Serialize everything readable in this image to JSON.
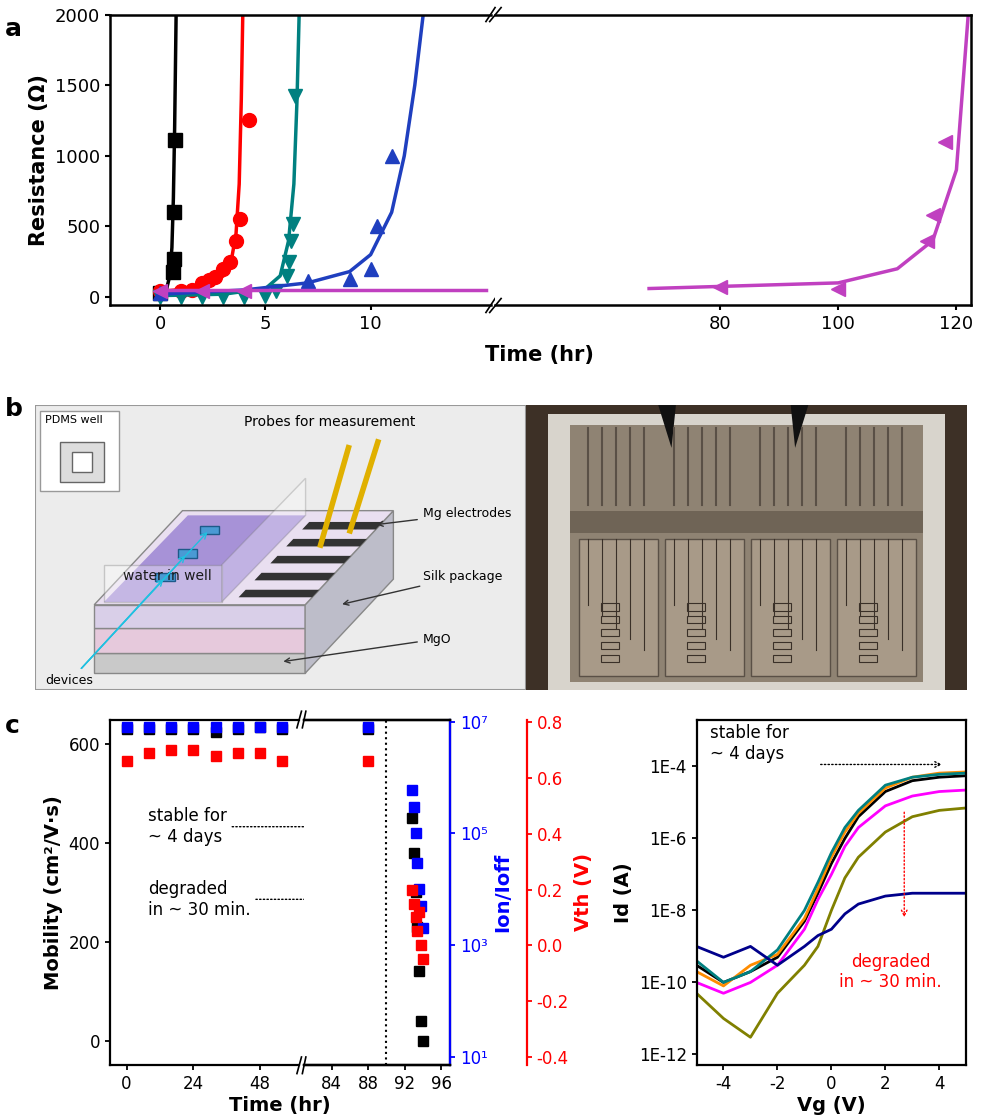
{
  "chart_data": [
    {
      "panel": "a",
      "type": "scatter",
      "x_label": "Time (hr)",
      "y_label": "Resistance (Ω)",
      "xlim": [
        [
          -2.4,
          15.7
        ],
        [
          42,
          122.5
        ]
      ],
      "xticks": [
        [
          0,
          5,
          10
        ],
        [
          80,
          100,
          120
        ]
      ],
      "ylim": [
        -60,
        2000
      ],
      "yticks": [
        0,
        500,
        1000,
        1500,
        2000
      ],
      "series": [
        {
          "color": "#000000",
          "marker": "square",
          "x": [
            0,
            0.6,
            0.65,
            0.65,
            0.7
          ],
          "values": [
            30,
            180,
            270,
            600,
            1110
          ],
          "fit_x": [
            0,
            0.3,
            0.45,
            0.55,
            0.62,
            0.68,
            0.75
          ],
          "fit_values": [
            30,
            60,
            150,
            350,
            700,
            1200,
            2000
          ]
        },
        {
          "color": "#ff0000",
          "marker": "circle",
          "x": [
            0,
            1,
            1.5,
            2,
            2.3,
            2.6,
            3,
            3.3,
            3.6,
            3.8,
            4.2
          ],
          "values": [
            40,
            40,
            50,
            100,
            120,
            140,
            200,
            250,
            400,
            550,
            1250
          ],
          "fit_x": [
            0,
            1.5,
            2.5,
            3,
            3.4,
            3.6,
            3.75,
            3.85,
            3.92
          ],
          "fit_values": [
            40,
            60,
            100,
            150,
            280,
            450,
            800,
            1400,
            2000
          ]
        },
        {
          "color": "#008080",
          "marker": "triangle_down",
          "x": [
            0,
            1,
            2,
            3,
            4,
            5,
            5.5,
            6,
            6.1,
            6.2,
            6.3,
            6.4
          ],
          "values": [
            0,
            0,
            0,
            0,
            0,
            10,
            40,
            150,
            250,
            400,
            520,
            1420
          ],
          "fit_x": [
            0,
            3,
            5,
            5.7,
            6.1,
            6.35,
            6.5,
            6.6
          ],
          "fit_values": [
            10,
            20,
            60,
            150,
            400,
            800,
            1400,
            2000
          ]
        },
        {
          "color": "#1f3fbf",
          "marker": "triangle_up",
          "x": [
            0,
            7,
            9,
            10,
            10.3,
            11
          ],
          "values": [
            30,
            110,
            130,
            200,
            500,
            1000
          ],
          "fit_x": [
            0,
            4,
            7,
            9,
            10,
            11,
            11.6,
            12.1,
            12.5
          ],
          "fit_values": [
            20,
            50,
            100,
            180,
            300,
            600,
            1000,
            1500,
            2000
          ]
        },
        {
          "color": "#c040c0",
          "marker": "triangle_left",
          "x": [
            0,
            2,
            4,
            80,
            100,
            115,
            116,
            118
          ],
          "values": [
            40,
            40,
            40,
            70,
            60,
            400,
            580,
            1100
          ],
          "fit_x": [
            0,
            15.5,
            null,
            68,
            100,
            110,
            116,
            120,
            122
          ],
          "fit_values": [
            50,
            50,
            null,
            60,
            100,
            200,
            400,
            900,
            2000
          ]
        }
      ]
    },
    {
      "panel": "c",
      "type": "scatter",
      "x_label": "Time (hr)",
      "y_label": "Mobility (cm²/V·s)",
      "y2_label": "Ion/Ioff",
      "y3_label": "Vth (V)",
      "xlim": [
        [
          -6,
          62
        ],
        [
          81,
          97
        ]
      ],
      "xticks": [
        [
          0,
          24,
          48
        ],
        [
          84,
          88,
          92,
          96
        ]
      ],
      "ylim": [
        -50,
        650
      ],
      "yticks": [
        0,
        200,
        400,
        600
      ],
      "log": "y2",
      "y2lim": [
        7,
        11000000
      ],
      "y2ticks": [
        {
          "value": 10,
          "label": "10¹"
        },
        {
          "value": 1000,
          "label": "10³"
        },
        {
          "value": 100000,
          "label": "10⁵"
        },
        {
          "value": 10000000,
          "label": "10⁷"
        }
      ],
      "y3lim": [
        -0.43,
        0.81
      ],
      "y3ticks": [
        -0.4,
        -0.2,
        {
          "value": 0,
          "label": "0.0"
        },
        0.2,
        0.4,
        0.6,
        0.8
      ],
      "vline": 90,
      "annotations": [
        {
          "text": "stable for\n~ 4 days"
        },
        {
          "text": "degraded\nin ~ 30 min."
        }
      ],
      "series": [
        {
          "color": "#000000",
          "marker": "square",
          "axis": "y",
          "x": [
            0,
            8,
            16,
            24,
            32,
            40,
            48,
            56,
            88,
            92.8,
            93,
            93.2,
            93.4,
            93.6,
            93.8,
            94
          ],
          "values": [
            630,
            630,
            630,
            630,
            625,
            630,
            635,
            630,
            630,
            450,
            380,
            300,
            230,
            140,
            40,
            0
          ]
        },
        {
          "color": "#0000ff",
          "marker": "square",
          "axis": "y2",
          "x": [
            0,
            8,
            16,
            24,
            32,
            40,
            48,
            56,
            88,
            92.8,
            93,
            93.2,
            93.4,
            93.6,
            93.8,
            94
          ],
          "values": [
            8000000,
            8000000,
            8000000,
            8000000,
            8000000,
            8000000,
            8000000,
            8000000,
            8000000,
            600000,
            300000,
            100000,
            30000,
            10000,
            5000,
            2000
          ]
        },
        {
          "color": "#ff0000",
          "marker": "square",
          "axis": "y3",
          "x": [
            0,
            8,
            16,
            24,
            32,
            40,
            48,
            56,
            88,
            92.8,
            93,
            93.2,
            93.4,
            93.6,
            93.8,
            94
          ],
          "values": [
            0.66,
            0.69,
            0.7,
            0.7,
            0.68,
            0.69,
            0.69,
            0.66,
            0.66,
            0.2,
            0.15,
            0.1,
            0.05,
            0.12,
            0.0,
            -0.05
          ]
        }
      ]
    },
    {
      "type": "line",
      "x_label": "Vg (V)",
      "y_label": "Id (A)",
      "log": "y",
      "xlim": [
        -5,
        5
      ],
      "xticks": [
        -4,
        -2,
        0,
        2,
        4
      ],
      "ylim": [
        5e-13,
        0.002
      ],
      "yticks": [
        {
          "value": 1e-12,
          "label": "1E-12"
        },
        {
          "value": 1e-10,
          "label": "1E-10"
        },
        {
          "value": 1e-08,
          "label": "1E-8"
        },
        {
          "value": 1e-06,
          "label": "1E-6"
        },
        {
          "value": 0.0001,
          "label": "1E-4"
        }
      ],
      "annotations": [
        {
          "text": "stable for\n~ 4 days"
        },
        {
          "text": "degraded\nin ~ 30 min.",
          "color": "#ff0000"
        }
      ],
      "x": [
        -5,
        -4,
        -3,
        -2,
        -1,
        -0.5,
        0,
        0.5,
        1,
        2,
        3,
        4,
        5
      ],
      "series": [
        {
          "color": "#000000",
          "values": [
            3e-10,
            1e-10,
            2e-10,
            5e-10,
            5e-09,
            3e-08,
            2e-07,
            1e-06,
            4e-06,
            2e-05,
            4e-05,
            5e-05,
            5.5e-05
          ]
        },
        {
          "color": "#ff8c00",
          "values": [
            2e-10,
            8e-11,
            3e-10,
            6e-10,
            6e-09,
            4e-08,
            3e-07,
            1.5e-06,
            5e-06,
            2.5e-05,
            5e-05,
            6.5e-05,
            7e-05
          ]
        },
        {
          "color": "#008080",
          "values": [
            4e-10,
            1e-10,
            2e-10,
            8e-10,
            1e-08,
            6e-08,
            4e-07,
            2e-06,
            6e-06,
            3e-05,
            5e-05,
            6e-05,
            6.5e-05
          ]
        },
        {
          "color": "#ff00ff",
          "values": [
            1e-10,
            5e-11,
            1e-10,
            3e-10,
            3e-09,
            2e-08,
            1e-07,
            6e-07,
            2e-06,
            8e-06,
            1.5e-05,
            2e-05,
            2.2e-05
          ]
        },
        {
          "color": "#808000",
          "values": [
            5e-11,
            1e-11,
            3e-12,
            5e-11,
            3e-10,
            1e-09,
            1e-08,
            8e-08,
            3e-07,
            1.5e-06,
            4e-06,
            6e-06,
            7e-06
          ]
        },
        {
          "color": "#00008b",
          "values": [
            1e-09,
            5e-10,
            1e-09,
            3e-10,
            1e-09,
            2e-09,
            3e-09,
            8e-09,
            1.5e-08,
            2.5e-08,
            3e-08,
            3e-08,
            3e-08
          ]
        }
      ]
    }
  ],
  "diagram": {
    "panel": "b",
    "inset_label": "PDMS well",
    "labels": {
      "water": "water in well",
      "probes": "Probes for measurement",
      "electrodes": "Mg electrodes",
      "package": "Silk package",
      "substrate": "MgO",
      "devices": "devices"
    }
  }
}
